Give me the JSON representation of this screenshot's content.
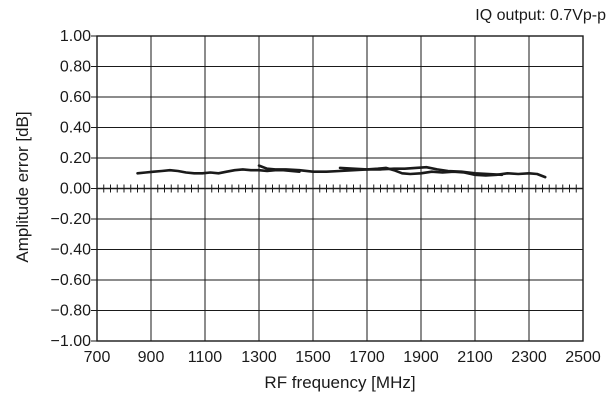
{
  "chart_data": {
    "type": "line",
    "annotation": "IQ output: 0.7Vp-p",
    "xlabel": "RF frequency [MHz]",
    "ylabel": "Amplitude error [dB]",
    "xlim": [
      700,
      2500
    ],
    "ylim": [
      -1.0,
      1.0
    ],
    "x_ticks": [
      700,
      900,
      1100,
      1300,
      1500,
      1700,
      1900,
      2100,
      2300,
      2500
    ],
    "x_tick_labels": [
      "700",
      "900",
      "1100",
      "1300",
      "1500",
      "1700",
      "1900",
      "2100",
      "2300",
      "2500"
    ],
    "y_ticks": [
      1.0,
      0.8,
      0.6,
      0.4,
      0.2,
      0.0,
      -0.2,
      -0.4,
      -0.6,
      -0.8,
      -1.0
    ],
    "y_tick_labels": [
      "1.00",
      "0.80",
      "0.60",
      "0.40",
      "0.20",
      "0.00",
      "−0.20",
      "−0.40",
      "−0.60",
      "−0.80",
      "−1.00"
    ],
    "grid": true,
    "minor_x_ticks_on_zero_line": true,
    "minor_x_step": 25,
    "series": [
      {
        "color": "#1a1a1a",
        "x": [
          850,
          880,
          910,
          940,
          970,
          1000,
          1030,
          1060,
          1090,
          1120,
          1150,
          1180,
          1210,
          1240,
          1270,
          1300,
          1330,
          1360,
          1390,
          1420,
          1450
        ],
        "y": [
          0.1,
          0.105,
          0.11,
          0.115,
          0.12,
          0.115,
          0.105,
          0.1,
          0.1,
          0.105,
          0.1,
          0.11,
          0.12,
          0.125,
          0.12,
          0.12,
          0.115,
          0.12,
          0.12,
          0.115,
          0.11
        ]
      },
      {
        "color": "#1a1a1a",
        "x": [
          1300,
          1330,
          1360,
          1400,
          1450,
          1500,
          1550,
          1600,
          1650,
          1700,
          1740,
          1770,
          1800,
          1830,
          1860,
          1900,
          1940,
          1980,
          2020,
          2060,
          2100,
          2140,
          2180,
          2220,
          2260,
          2300,
          2330,
          2360
        ],
        "y": [
          0.15,
          0.13,
          0.125,
          0.125,
          0.12,
          0.11,
          0.11,
          0.115,
          0.12,
          0.125,
          0.13,
          0.135,
          0.12,
          0.1,
          0.095,
          0.1,
          0.11,
          0.105,
          0.11,
          0.105,
          0.09,
          0.085,
          0.09,
          0.1,
          0.095,
          0.1,
          0.095,
          0.075
        ]
      },
      {
        "color": "#1a1a1a",
        "x": [
          1600,
          1650,
          1700,
          1750,
          1800,
          1840,
          1880,
          1920,
          1960,
          2000,
          2050,
          2100,
          2150,
          2200
        ],
        "y": [
          0.135,
          0.13,
          0.125,
          0.125,
          0.13,
          0.13,
          0.135,
          0.14,
          0.125,
          0.115,
          0.11,
          0.1,
          0.095,
          0.09
        ]
      }
    ]
  }
}
